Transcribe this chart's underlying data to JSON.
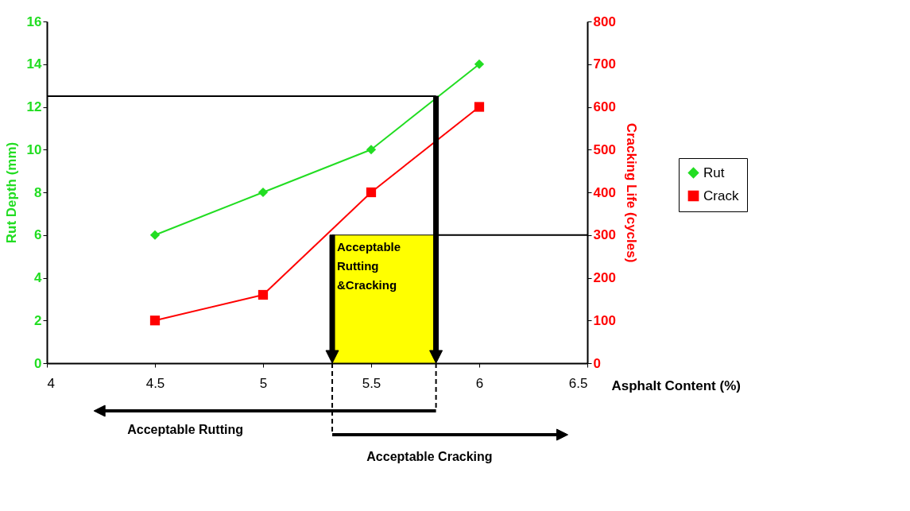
{
  "chart_data": {
    "type": "line",
    "xlabel": "Asphalt Content (%)",
    "ylabel": "Rut Depth (mm)",
    "y2label": "Cracking Life (cycles)",
    "x": [
      4.5,
      5,
      5.5,
      6
    ],
    "series": [
      {
        "name": "Rut",
        "color": "#22dd22",
        "values": [
          6,
          8,
          10,
          14
        ],
        "marker": "diamond"
      },
      {
        "name": "Crack",
        "color": "#ff0000",
        "values": [
          100,
          160,
          400,
          600
        ],
        "axis": "y2",
        "marker": "square"
      }
    ],
    "xlim": [
      4,
      6.5
    ],
    "xticks": [
      4,
      4.5,
      5,
      5.5,
      6,
      6.5
    ],
    "ylim": [
      0,
      16
    ],
    "yticks": [
      0,
      2,
      4,
      6,
      8,
      10,
      12,
      14,
      16
    ],
    "y2lim": [
      0,
      800
    ],
    "y2ticks": [
      0,
      100,
      200,
      300,
      400,
      500,
      600,
      700,
      800
    ],
    "bands": [
      {
        "axis": "x",
        "from": 5.32,
        "to": 5.8,
        "label": "Acceptable Rutting &Cracking",
        "color": "#ffff00"
      }
    ],
    "ref_lines": [
      {
        "axis": "y",
        "value": 12.5,
        "color": "#000000"
      },
      {
        "axis": "y2",
        "value": 300,
        "color": "#000000"
      },
      {
        "axis": "x",
        "value": 5.32,
        "color": "#000000"
      },
      {
        "axis": "x",
        "value": 5.8,
        "color": "#000000"
      }
    ],
    "annotations": [
      "Acceptable Rutting",
      "Acceptable Cracking"
    ],
    "grid": false,
    "legend": "right"
  }
}
